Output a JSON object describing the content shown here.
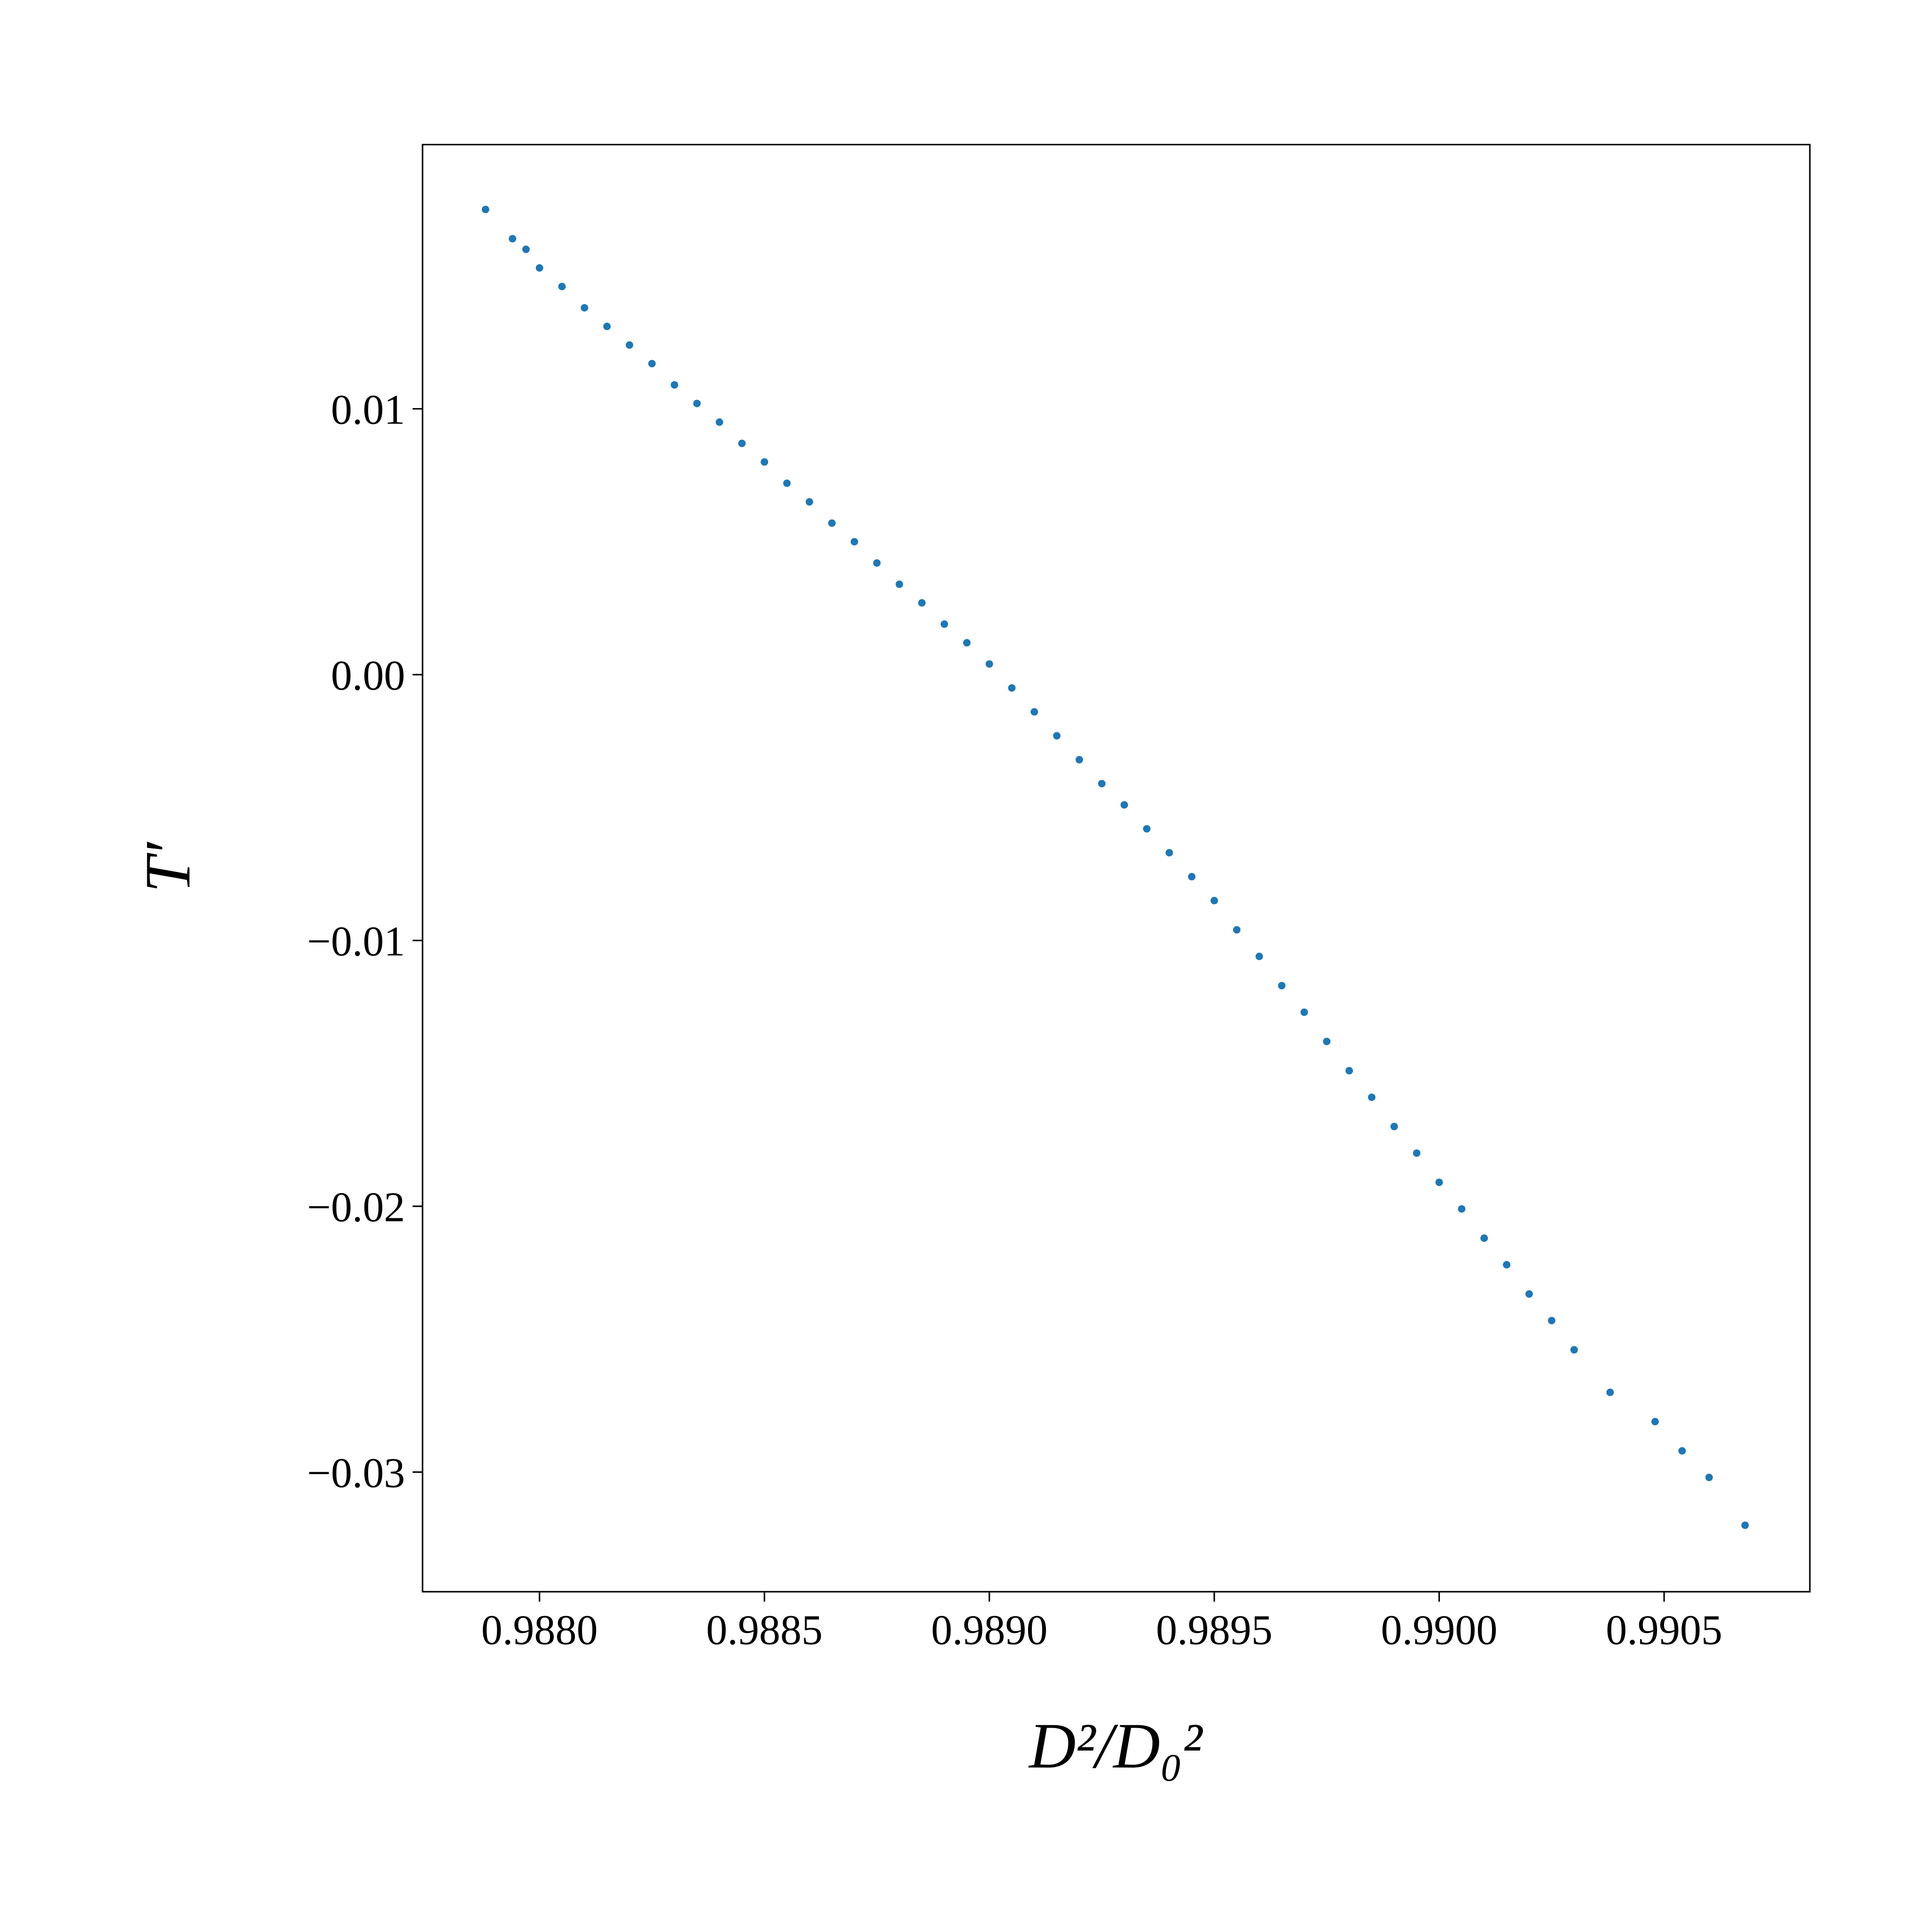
{
  "chart_data": {
    "type": "scatter",
    "x_label": "D²/D₀²",
    "y_label": "T′",
    "color": "#1f77b4",
    "xlim": [
      0.98774,
      0.990824
    ],
    "ylim": [
      -0.0345,
      0.01994
    ],
    "xticks": [
      {
        "value": 0.988,
        "label": "0.9880"
      },
      {
        "value": 0.9885,
        "label": "0.9885"
      },
      {
        "value": 0.989,
        "label": "0.9890"
      },
      {
        "value": 0.9895,
        "label": "0.9895"
      },
      {
        "value": 0.99,
        "label": "0.9900"
      },
      {
        "value": 0.9905,
        "label": "0.9905"
      }
    ],
    "yticks": [
      {
        "value": -0.03,
        "label": "−0.03"
      },
      {
        "value": -0.02,
        "label": "−0.02"
      },
      {
        "value": -0.01,
        "label": "−0.01"
      },
      {
        "value": 0,
        "label": "0.00"
      },
      0.01
    ],
    "x": [
      0.98788,
      0.98794,
      0.98797,
      0.988,
      0.98805,
      0.9881,
      0.98815,
      0.9882,
      0.98825,
      0.9883,
      0.98835,
      0.9884,
      0.98845,
      0.9885,
      0.98855,
      0.9886,
      0.98865,
      0.9887,
      0.98875,
      0.9888,
      0.98885,
      0.9889,
      0.98895,
      0.989,
      0.98905,
      0.9891,
      0.98915,
      0.9892,
      0.98925,
      0.9893,
      0.98935,
      0.9894,
      0.98945,
      0.9895,
      0.98955,
      0.9896,
      0.98965,
      0.9897,
      0.98975,
      0.9898,
      0.98985,
      0.9899,
      0.98995,
      0.99,
      0.99005,
      0.9901,
      0.99015,
      0.9902,
      0.99025,
      0.9903,
      0.99038,
      0.99048,
      0.99054,
      0.9906,
      0.99068
    ],
    "values": [
      0.0175,
      0.0164,
      0.016,
      0.0153,
      0.0146,
      0.0138,
      0.0131,
      0.0124,
      0.0117,
      0.0109,
      0.0102,
      0.0095,
      0.0087,
      0.008,
      0.0072,
      0.0065,
      0.0057,
      0.005,
      0.0042,
      0.0034,
      0.0027,
      0.0019,
      0.0012,
      0.0004,
      -0.0005,
      -0.0014,
      -0.0023,
      -0.0032,
      -0.0041,
      -0.0049,
      -0.0058,
      -0.0067,
      -0.0076,
      -0.0085,
      -0.0096,
      -0.0106,
      -0.0117,
      -0.0127,
      -0.0138,
      -0.0149,
      -0.0159,
      -0.017,
      -0.018,
      -0.0191,
      -0.0201,
      -0.0212,
      -0.0222,
      -0.0233,
      -0.0243,
      -0.0254,
      -0.027,
      -0.0281,
      -0.0292,
      -0.0302,
      -0.032
    ]
  }
}
